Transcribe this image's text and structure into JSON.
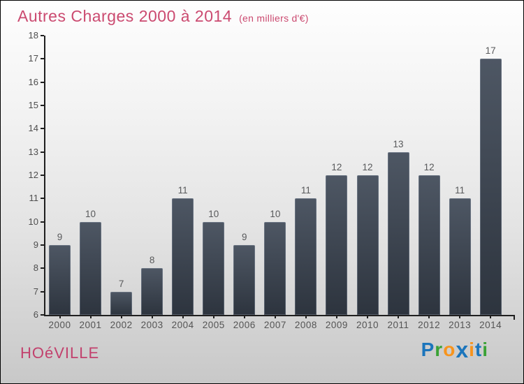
{
  "window": {
    "border_color": "#000000",
    "background_top": "#fefefe",
    "background_bottom": "#c8c8c8"
  },
  "header": {
    "title": "Autres Charges 2000 à 2014",
    "subtitle": "(en milliers d'€)",
    "title_color": "#cb4a70"
  },
  "chart_data": {
    "type": "bar",
    "title": "Autres Charges 2000 à 2014",
    "subtitle": "(en milliers d'€)",
    "categories": [
      "2000",
      "2001",
      "2002",
      "2003",
      "2004",
      "2005",
      "2006",
      "2007",
      "2008",
      "2009",
      "2010",
      "2011",
      "2012",
      "2013",
      "2014"
    ],
    "values": [
      9,
      10,
      7,
      8,
      11,
      10,
      9,
      10,
      11,
      12,
      12,
      13,
      12,
      11,
      17
    ],
    "xlabel": "",
    "ylabel": "",
    "ylim": [
      6,
      18
    ],
    "ytick_step": 1,
    "grid": false,
    "legend": "none",
    "value_labels_shown": true,
    "bar_color_top": "#4e5764",
    "bar_color_bottom": "#2d343e",
    "axis_color": "#1f1f1f",
    "tick_label_color": "#4e4e4e",
    "value_label_color": "#58595b"
  },
  "footer": {
    "site_name": "HOéVILLE",
    "site_name_color": "#c2416d",
    "logo": {
      "text": "Proxiti",
      "letters": [
        {
          "char": "P",
          "color": "#1b75bc"
        },
        {
          "char": "r",
          "color": "#3aa235"
        },
        {
          "char": "o",
          "color": "#f7941d"
        },
        {
          "char": "x",
          "color": "#1b75bc"
        },
        {
          "char": "i",
          "color": "#f7941d"
        },
        {
          "char": "t",
          "color": "#1b75bc"
        },
        {
          "char": "i",
          "color": "#3aa235"
        }
      ]
    }
  }
}
